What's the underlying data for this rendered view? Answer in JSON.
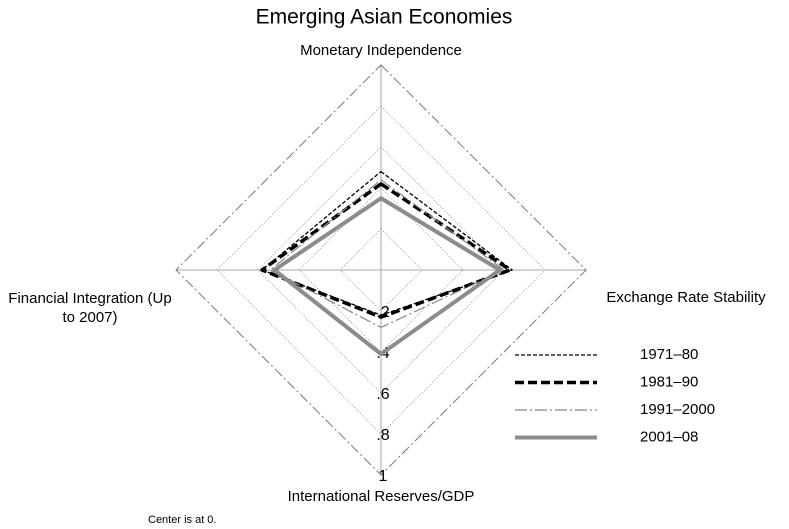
{
  "chart_data": {
    "type": "radar",
    "title": "Emerging Asian Economies",
    "categories": [
      "Monetary Independence",
      "Exchange Rate Stability",
      "International Reserves/GDP",
      "Financial Integration (Up to 2007)"
    ],
    "series": [
      {
        "name": "1971–80",
        "color": "#000000",
        "values": [
          0.48,
          0.64,
          0.22,
          0.58
        ]
      },
      {
        "name": "1981–90",
        "color": "#000000",
        "values": [
          0.42,
          0.63,
          0.23,
          0.58
        ]
      },
      {
        "name": "1991–2000",
        "color": "#888888",
        "values": [
          0.44,
          0.6,
          0.28,
          0.54
        ]
      },
      {
        "name": "2001–08",
        "color": "#8c8c8c",
        "values": [
          0.35,
          0.58,
          0.41,
          0.52
        ]
      }
    ],
    "rlim": [
      0,
      1
    ],
    "rticks": [
      {
        "value": 0.2,
        "label": ".2"
      },
      {
        "value": 0.4,
        "label": ".4"
      },
      {
        "value": 0.6,
        "label": ".6"
      },
      {
        "value": 0.8,
        "label": ".8"
      },
      1
    ],
    "grid": true,
    "legend": "lower right",
    "annotation": "Center is at 0."
  }
}
